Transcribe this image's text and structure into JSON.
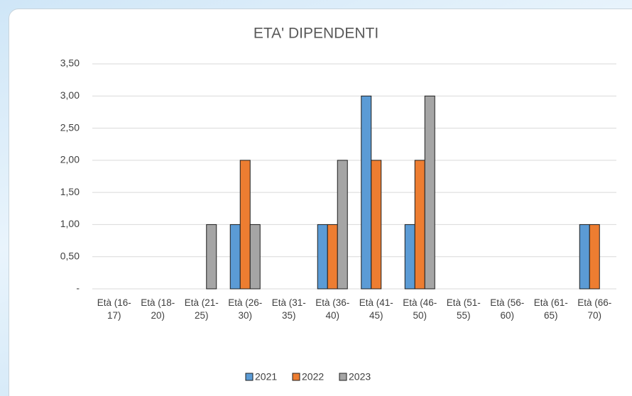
{
  "chart_data": {
    "type": "bar",
    "title": "ETA' DIPENDENTI",
    "categories": [
      "Età (16-17)",
      "Età (18-20)",
      "Età (21-25)",
      "Età (26-30)",
      "Età (31-35)",
      "Età (36-40)",
      "Età (41-45)",
      "Età (46-50)",
      "Età (51-55)",
      "Età (56-60)",
      "Età (61-65)",
      "Età (66-70)"
    ],
    "series": [
      {
        "name": "2021",
        "color": "#5b9bd5",
        "values": [
          0,
          0,
          0,
          1,
          0,
          1,
          3,
          1,
          0,
          0,
          0,
          1
        ]
      },
      {
        "name": "2022",
        "color": "#ed7d31",
        "values": [
          0,
          0,
          0,
          2,
          0,
          1,
          2,
          2,
          0,
          0,
          0,
          1
        ]
      },
      {
        "name": "2023",
        "color": "#a5a5a5",
        "values": [
          0,
          0,
          1,
          1,
          0,
          2,
          0,
          3,
          0,
          0,
          0,
          0
        ]
      }
    ],
    "ylim": [
      0,
      3.5
    ],
    "yticks": [
      {
        "value": 0,
        "label": "-"
      },
      {
        "value": 0.5,
        "label": "0,50"
      },
      {
        "value": 1,
        "label": "1,00"
      },
      {
        "value": 1.5,
        "label": "1,50"
      },
      {
        "value": 2,
        "label": "2,00"
      },
      {
        "value": 2.5,
        "label": "2,50"
      },
      {
        "value": 3,
        "label": "3,00"
      },
      {
        "value": 3.5,
        "label": "3,50"
      }
    ],
    "grid": true,
    "legend": "bottom"
  }
}
